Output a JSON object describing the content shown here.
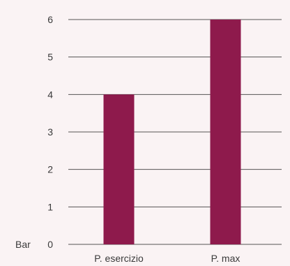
{
  "chart_data": {
    "type": "bar",
    "categories": [
      "P. esercizio",
      "P. max"
    ],
    "values": [
      4,
      6
    ],
    "ylabel": "Bar",
    "ylim": [
      0,
      6
    ],
    "yticks": [
      0,
      1,
      2,
      3,
      4,
      5,
      6
    ],
    "grid": true,
    "bar_color": "#8e1a4c",
    "grid_color": "#555555",
    "background": "#faf3f4"
  }
}
